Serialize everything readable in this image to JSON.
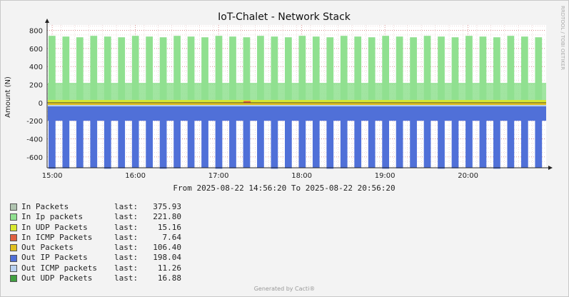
{
  "chart_data": {
    "type": "area",
    "title": "IoT-Chalet - Network Stack",
    "ylabel": "Amount (N)",
    "watermark": "RRDTOOL / TOBI OETIKER",
    "time_range": "From 2025-08-22 14:56:20 To 2025-08-22 20:56:20",
    "x_ticks": [
      "15:00",
      "16:00",
      "17:00",
      "18:00",
      "19:00",
      "20:00"
    ],
    "y_ticks": [
      800,
      600,
      400,
      200,
      0,
      -200,
      -400,
      -600
    ],
    "ylim": [
      -720,
      860
    ],
    "grid": true,
    "pulse_count": 36,
    "series": [
      {
        "name": "In Packets",
        "color": "#b0c4b0",
        "last": "375.93"
      },
      {
        "name": "In Ip packets",
        "color": "#90e090",
        "last": "221.80",
        "pulse_peak": 740,
        "baseline": 220
      },
      {
        "name": "In UDP Packets",
        "color": "#d8e830",
        "last": "15.16"
      },
      {
        "name": "In ICMP Packets",
        "color": "#e06040",
        "last": "7.64"
      },
      {
        "name": "Out Packets",
        "color": "#e0c020",
        "last": "106.40"
      },
      {
        "name": "Out IP Packets",
        "color": "#5070d8",
        "last": "198.04",
        "pulse_peak": -730,
        "baseline": -200
      },
      {
        "name": "Out ICMP packets",
        "color": "#b8d0f0",
        "last": "11.26"
      },
      {
        "name": "Out UDP Packets",
        "color": "#40a040",
        "last": "16.88"
      }
    ]
  },
  "footer": "Generated by Cacti®"
}
